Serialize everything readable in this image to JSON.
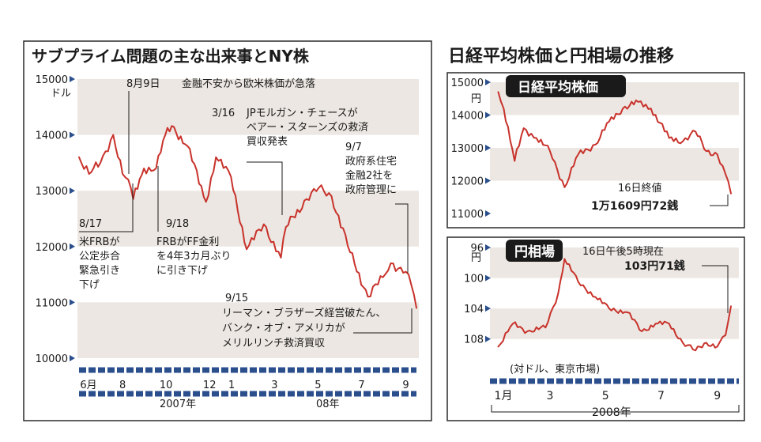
{
  "left_title": "サブプライム問題の主な出来事とNY株",
  "right_title": "日経平均株価と円相場の推移",
  "chart_data": [
    {
      "type": "line",
      "title": "サブプライム問題の主な出来事とNY株",
      "unit_label": "ドル",
      "ylim": [
        10000,
        15000
      ],
      "y_ticks": [
        "15000",
        "14000",
        "13000",
        "12000",
        "11000",
        "10000"
      ],
      "x_tick_labels": [
        "6月",
        "8",
        "10",
        "12",
        "1",
        "3",
        "5",
        "7",
        "9"
      ],
      "x_year_labels": [
        "2007年",
        "08年"
      ],
      "x_range": [
        "2007-06-01",
        "2008-09-16"
      ],
      "series": [
        {
          "x": [
            "2007-06-01",
            "2007-06-15",
            "2007-07-01",
            "2007-07-19",
            "2007-08-01",
            "2007-08-09",
            "2007-08-16",
            "2007-08-31",
            "2007-09-17",
            "2007-09-30",
            "2007-10-09",
            "2007-10-31",
            "2007-11-26",
            "2007-12-10",
            "2007-12-31",
            "2008-01-22",
            "2008-02-15",
            "2008-03-10",
            "2008-03-17",
            "2008-04-15",
            "2008-05-02",
            "2008-05-20",
            "2008-06-15",
            "2008-07-10",
            "2008-07-31",
            "2008-08-11",
            "2008-09-01",
            "2008-09-09",
            "2008-09-16"
          ],
          "values": [
            13600,
            13300,
            13500,
            14000,
            13300,
            13200,
            12850,
            13400,
            13400,
            14000,
            14160,
            13800,
            12800,
            13600,
            13250,
            11950,
            12400,
            11800,
            12350,
            12850,
            13050,
            12900,
            11900,
            11100,
            11450,
            11700,
            11550,
            11300,
            10900
          ]
        }
      ],
      "events": [
        {
          "date": "8月9日",
          "text": "金融不安から欧米株価が急落"
        },
        {
          "date": "8/17",
          "lines": [
            "米FRBが",
            "公定歩合",
            "緊急引き",
            "下げ"
          ]
        },
        {
          "date": "9/18",
          "lines": [
            "FRBがFF金利",
            "を4年3カ月ぶり",
            "に引き下げ"
          ]
        },
        {
          "date": "3/16",
          "lines": [
            "JPモルガン・チェースが",
            "ベアー・スターンズの救済",
            "買収発表"
          ]
        },
        {
          "date": "9/7",
          "lines": [
            "政府系住宅",
            "金融2社を",
            "政府管理に"
          ]
        },
        {
          "date": "9/15",
          "lines": [
            "リーマン・ブラザーズ経営破たん、",
            "バンク・オブ・アメリカが",
            "メリルリンチ救済買収"
          ]
        }
      ]
    },
    {
      "type": "line",
      "title": "日経平均株価",
      "unit_label": "円",
      "ylim": [
        11000,
        15000
      ],
      "y_ticks": [
        "15000",
        "14000",
        "13000",
        "12000",
        "11000"
      ],
      "x_range": [
        "2008-01-01",
        "2008-09-16"
      ],
      "series": [
        {
          "x": [
            "2008-01-04",
            "2008-01-10",
            "2008-01-22",
            "2008-02-01",
            "2008-02-15",
            "2008-03-01",
            "2008-03-17",
            "2008-04-01",
            "2008-04-20",
            "2008-05-05",
            "2008-05-20",
            "2008-06-06",
            "2008-06-20",
            "2008-07-10",
            "2008-07-25",
            "2008-08-08",
            "2008-08-20",
            "2008-09-01",
            "2008-09-10",
            "2008-09-16"
          ],
          "values": [
            14700,
            14200,
            12600,
            13600,
            13300,
            12900,
            11800,
            12800,
            13100,
            13800,
            14200,
            14400,
            14200,
            13300,
            13200,
            13500,
            12900,
            12800,
            12200,
            11609.72
          ]
        }
      ],
      "annotation": {
        "label": "16日終値",
        "value_text": "1万1609円72銭"
      }
    },
    {
      "type": "line",
      "title": "円相場",
      "unit_label": "円",
      "y_inverted": true,
      "ylim": [
        96,
        110
      ],
      "y_ticks": [
        "96",
        "100",
        "104",
        "108"
      ],
      "x_tick_labels": [
        "1月",
        "3",
        "5",
        "7",
        "9"
      ],
      "x_year_labels": [
        "2008年"
      ],
      "x_range": [
        "2008-01-01",
        "2008-09-16"
      ],
      "note": "(対ドル、東京市場)",
      "series": [
        {
          "x": [
            "2008-01-04",
            "2008-01-20",
            "2008-02-05",
            "2008-02-25",
            "2008-03-10",
            "2008-03-17",
            "2008-04-01",
            "2008-04-20",
            "2008-05-05",
            "2008-05-25",
            "2008-06-10",
            "2008-06-25",
            "2008-07-10",
            "2008-07-25",
            "2008-08-08",
            "2008-08-20",
            "2008-09-01",
            "2008-09-10",
            "2008-09-16"
          ],
          "values": [
            109,
            106,
            107,
            106.5,
            102,
            97.5,
            100.5,
            102.5,
            104,
            104.5,
            107,
            106,
            106,
            108.5,
            109.5,
            108.5,
            109,
            107.5,
            103.71
          ]
        }
      ],
      "annotation": {
        "label": "16日午後5時現在",
        "value_text": "103円71銭"
      }
    }
  ]
}
